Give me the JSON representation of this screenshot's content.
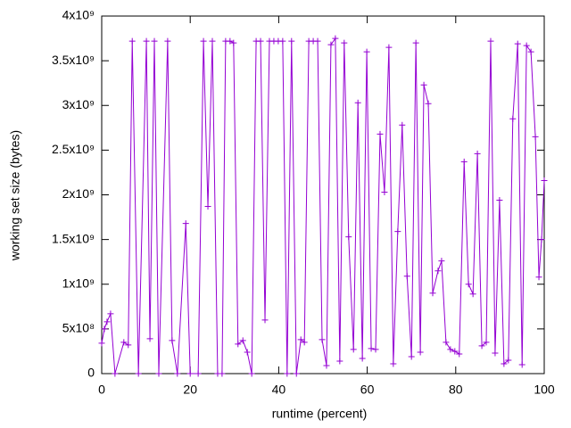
{
  "chart_data": {
    "type": "line",
    "xlabel": "runtime (percent)",
    "ylabel": "working set size (bytes)",
    "xlim": [
      0,
      100
    ],
    "xticks": [
      0,
      20,
      40,
      60,
      80,
      100
    ],
    "ylim": [
      0,
      4000000000.0
    ],
    "yticks": [
      0,
      {
        "value": 500000000.0,
        "label": "5x10⁸"
      },
      {
        "value": 1000000000.0,
        "label": "1x10⁹"
      },
      {
        "value": 1500000000.0,
        "label": "1.5x10⁹"
      },
      {
        "value": 2000000000.0,
        "label": "2x10⁹"
      },
      {
        "value": 2500000000.0,
        "label": "2.5x10⁹"
      },
      {
        "value": 3000000000.0,
        "label": "3x10⁹"
      },
      {
        "value": 3500000000.0,
        "label": "3.5x10⁹"
      },
      {
        "value": 4000000000.0,
        "label": "4x10⁹"
      }
    ],
    "grid": false,
    "color": "#9400d3",
    "x": [
      0,
      0.6,
      1.2,
      2.0,
      3.0,
      5.0,
      6.0,
      6.9,
      8.3,
      10.1,
      10.9,
      11.9,
      12.9,
      14.9,
      15.9,
      17.1,
      19.0,
      20.0,
      21.8,
      23.0,
      24.0,
      25.0,
      26.2,
      27.2,
      28.0,
      29.0,
      29.8,
      30.8,
      31.9,
      32.9,
      33.9,
      34.9,
      35.9,
      36.9,
      37.9,
      38.9,
      39.9,
      40.9,
      41.9,
      42.9,
      44.0,
      45.0,
      45.8,
      46.8,
      47.8,
      48.8,
      49.8,
      50.8,
      51.8,
      52.8,
      53.8,
      54.8,
      55.8,
      56.9,
      57.9,
      58.9,
      59.9,
      60.9,
      61.9,
      62.9,
      63.9,
      64.9,
      65.9,
      66.9,
      67.9,
      69.0,
      70.0,
      71.0,
      72.0,
      72.8,
      73.8,
      74.8,
      76.0,
      76.8,
      77.8,
      78.8,
      79.8,
      80.8,
      81.9,
      82.9,
      83.9,
      84.9,
      85.9,
      86.9,
      87.9,
      88.9,
      89.9,
      90.9,
      91.9,
      92.9,
      94.0,
      95.0,
      96.0,
      97.0,
      98.0,
      98.8,
      99.4,
      100
    ],
    "values": [
      340000000.0,
      500000000.0,
      580000000.0,
      670000000.0,
      0,
      350000000.0,
      320000000.0,
      3720000000.0,
      0,
      3720000000.0,
      390000000.0,
      3720000000.0,
      0,
      3720000000.0,
      370000000.0,
      0,
      1680000000.0,
      0,
      0,
      3720000000.0,
      1870000000.0,
      3720000000.0,
      0,
      0,
      3720000000.0,
      3720000000.0,
      3700000000.0,
      330000000.0,
      370000000.0,
      240000000.0,
      0,
      3720000000.0,
      3720000000.0,
      600000000.0,
      3720000000.0,
      3720000000.0,
      3720000000.0,
      3720000000.0,
      0,
      3720000000.0,
      0,
      380000000.0,
      350000000.0,
      3720000000.0,
      3720000000.0,
      3720000000.0,
      380000000.0,
      90000000.0,
      3680000000.0,
      3750000000.0,
      140000000.0,
      3700000000.0,
      1530000000.0,
      270000000.0,
      3030000000.0,
      170000000.0,
      3600000000.0,
      280000000.0,
      270000000.0,
      2680000000.0,
      2030000000.0,
      3650000000.0,
      110000000.0,
      1590000000.0,
      2780000000.0,
      1090000000.0,
      190000000.0,
      3700000000.0,
      240000000.0,
      3230000000.0,
      3020000000.0,
      900000000.0,
      1150000000.0,
      1260000000.0,
      350000000.0,
      270000000.0,
      250000000.0,
      220000000.0,
      2370000000.0,
      1000000000.0,
      890000000.0,
      2460000000.0,
      310000000.0,
      350000000.0,
      3720000000.0,
      230000000.0,
      1940000000.0,
      110000000.0,
      150000000.0,
      2850000000.0,
      3690000000.0,
      100000000.0,
      3670000000.0,
      3600000000.0,
      2650000000.0,
      1080000000.0,
      1500000000.0,
      2160000000.0
    ]
  }
}
